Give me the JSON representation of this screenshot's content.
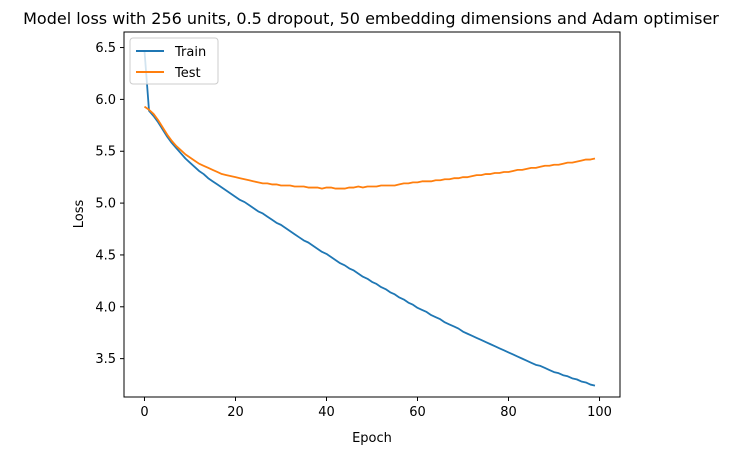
{
  "chart_data": {
    "type": "line",
    "title": "Model loss with 256 units, 0.5 dropout, 50 embedding dimensions and Adam optimiser",
    "xlabel": "Epoch",
    "ylabel": "Loss",
    "xlim": [
      -4.5,
      104.5
    ],
    "ylim": [
      3.13,
      6.65
    ],
    "xticks": [
      0,
      20,
      40,
      60,
      80,
      100
    ],
    "yticks": [
      3.5,
      4.0,
      4.5,
      5.0,
      5.5,
      6.0,
      6.5
    ],
    "xtick_labels": [
      "0",
      "20",
      "40",
      "60",
      "80",
      "100"
    ],
    "ytick_labels": [
      "3.5",
      "4.0",
      "4.5",
      "5.0",
      "5.5",
      "6.0",
      "6.5"
    ],
    "legend": {
      "position": "top-left",
      "entries": [
        "Train",
        "Test"
      ]
    },
    "series": [
      {
        "name": "Train",
        "color": "#1f77b4",
        "x": [
          0,
          1,
          2,
          3,
          4,
          5,
          6,
          7,
          8,
          9,
          10,
          11,
          12,
          13,
          14,
          15,
          16,
          17,
          18,
          19,
          20,
          21,
          22,
          23,
          24,
          25,
          26,
          27,
          28,
          29,
          30,
          31,
          32,
          33,
          34,
          35,
          36,
          37,
          38,
          39,
          40,
          41,
          42,
          43,
          44,
          45,
          46,
          47,
          48,
          49,
          50,
          51,
          52,
          53,
          54,
          55,
          56,
          57,
          58,
          59,
          60,
          61,
          62,
          63,
          64,
          65,
          66,
          67,
          68,
          69,
          70,
          71,
          72,
          73,
          74,
          75,
          76,
          77,
          78,
          79,
          80,
          81,
          82,
          83,
          84,
          85,
          86,
          87,
          88,
          89,
          90,
          91,
          92,
          93,
          94,
          95,
          96,
          97,
          98,
          99
        ],
        "values": [
          6.47,
          5.89,
          5.84,
          5.78,
          5.71,
          5.64,
          5.58,
          5.53,
          5.48,
          5.43,
          5.39,
          5.35,
          5.31,
          5.28,
          5.24,
          5.21,
          5.18,
          5.15,
          5.12,
          5.09,
          5.06,
          5.03,
          5.01,
          4.98,
          4.95,
          4.92,
          4.9,
          4.87,
          4.84,
          4.81,
          4.79,
          4.76,
          4.73,
          4.7,
          4.67,
          4.64,
          4.62,
          4.59,
          4.56,
          4.53,
          4.51,
          4.48,
          4.45,
          4.42,
          4.4,
          4.37,
          4.35,
          4.32,
          4.29,
          4.27,
          4.24,
          4.22,
          4.19,
          4.17,
          4.14,
          4.12,
          4.09,
          4.07,
          4.04,
          4.02,
          3.99,
          3.97,
          3.95,
          3.92,
          3.9,
          3.88,
          3.85,
          3.83,
          3.81,
          3.79,
          3.76,
          3.74,
          3.72,
          3.7,
          3.68,
          3.66,
          3.64,
          3.62,
          3.6,
          3.58,
          3.56,
          3.54,
          3.52,
          3.5,
          3.48,
          3.46,
          3.44,
          3.43,
          3.41,
          3.39,
          3.37,
          3.36,
          3.34,
          3.33,
          3.31,
          3.3,
          3.28,
          3.27,
          3.25,
          3.24
        ]
      },
      {
        "name": "Test",
        "color": "#ff7f0e",
        "x": [
          0,
          1,
          2,
          3,
          4,
          5,
          6,
          7,
          8,
          9,
          10,
          11,
          12,
          13,
          14,
          15,
          16,
          17,
          18,
          19,
          20,
          21,
          22,
          23,
          24,
          25,
          26,
          27,
          28,
          29,
          30,
          31,
          32,
          33,
          34,
          35,
          36,
          37,
          38,
          39,
          40,
          41,
          42,
          43,
          44,
          45,
          46,
          47,
          48,
          49,
          50,
          51,
          52,
          53,
          54,
          55,
          56,
          57,
          58,
          59,
          60,
          61,
          62,
          63,
          64,
          65,
          66,
          67,
          68,
          69,
          70,
          71,
          72,
          73,
          74,
          75,
          76,
          77,
          78,
          79,
          80,
          81,
          82,
          83,
          84,
          85,
          86,
          87,
          88,
          89,
          90,
          91,
          92,
          93,
          94,
          95,
          96,
          97,
          98,
          99
        ],
        "values": [
          5.93,
          5.9,
          5.86,
          5.8,
          5.73,
          5.66,
          5.6,
          5.55,
          5.51,
          5.47,
          5.44,
          5.41,
          5.38,
          5.36,
          5.34,
          5.32,
          5.3,
          5.28,
          5.27,
          5.26,
          5.25,
          5.24,
          5.23,
          5.22,
          5.21,
          5.2,
          5.19,
          5.19,
          5.18,
          5.18,
          5.17,
          5.17,
          5.17,
          5.16,
          5.16,
          5.16,
          5.15,
          5.15,
          5.15,
          5.14,
          5.15,
          5.15,
          5.14,
          5.14,
          5.14,
          5.15,
          5.15,
          5.16,
          5.15,
          5.16,
          5.16,
          5.16,
          5.17,
          5.17,
          5.17,
          5.17,
          5.18,
          5.19,
          5.19,
          5.2,
          5.2,
          5.21,
          5.21,
          5.21,
          5.22,
          5.22,
          5.23,
          5.23,
          5.24,
          5.24,
          5.25,
          5.25,
          5.26,
          5.27,
          5.27,
          5.28,
          5.28,
          5.29,
          5.29,
          5.3,
          5.3,
          5.31,
          5.32,
          5.32,
          5.33,
          5.34,
          5.34,
          5.35,
          5.36,
          5.36,
          5.37,
          5.37,
          5.38,
          5.39,
          5.39,
          5.4,
          5.41,
          5.42,
          5.42,
          5.43
        ]
      }
    ]
  }
}
